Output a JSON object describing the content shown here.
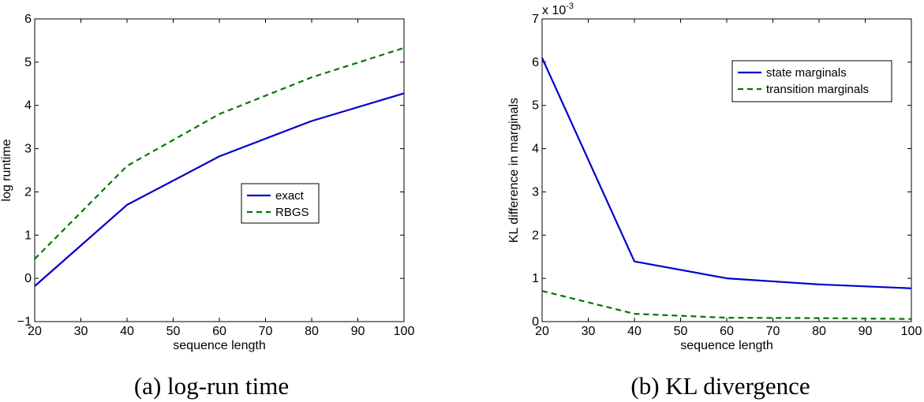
{
  "chart_data": [
    {
      "type": "line",
      "caption": "(a) log-run time",
      "title": "",
      "xlabel": "sequence length",
      "ylabel": "log runtime",
      "xlim": [
        20,
        100
      ],
      "ylim": [
        -1,
        6
      ],
      "xticks": [
        20,
        30,
        40,
        50,
        60,
        70,
        80,
        90,
        100
      ],
      "yticks": [
        -1,
        0,
        1,
        2,
        3,
        4,
        5,
        6
      ],
      "x": [
        20,
        40,
        60,
        80,
        100
      ],
      "legend_position": "center-right",
      "series": [
        {
          "name": "exact",
          "color": "#0000cc",
          "style": "solid",
          "values": [
            -0.18,
            1.7,
            2.82,
            3.64,
            4.28
          ]
        },
        {
          "name": "RBGS",
          "color": "#007700",
          "style": "dashed",
          "values": [
            0.45,
            2.6,
            3.8,
            4.65,
            5.33
          ]
        }
      ]
    },
    {
      "type": "line",
      "caption": "(b) KL divergence",
      "title": "",
      "xlabel": "sequence length",
      "ylabel": "KL difference in marginals",
      "exponent_label": "x 10",
      "exponent_power": "-3",
      "xlim": [
        20,
        100
      ],
      "ylim": [
        0,
        7
      ],
      "xticks": [
        20,
        30,
        40,
        50,
        60,
        70,
        80,
        90,
        100
      ],
      "yticks": [
        0,
        1,
        2,
        3,
        4,
        5,
        6,
        7
      ],
      "x": [
        20,
        40,
        60,
        80,
        100
      ],
      "legend_position": "top-right",
      "series": [
        {
          "name": "state marginals",
          "color": "#0000cc",
          "style": "solid",
          "values": [
            6.1,
            1.39,
            1.0,
            0.86,
            0.77
          ]
        },
        {
          "name": "transition marginals",
          "color": "#007700",
          "style": "dashed",
          "values": [
            0.71,
            0.18,
            0.09,
            0.08,
            0.06
          ]
        }
      ]
    }
  ]
}
